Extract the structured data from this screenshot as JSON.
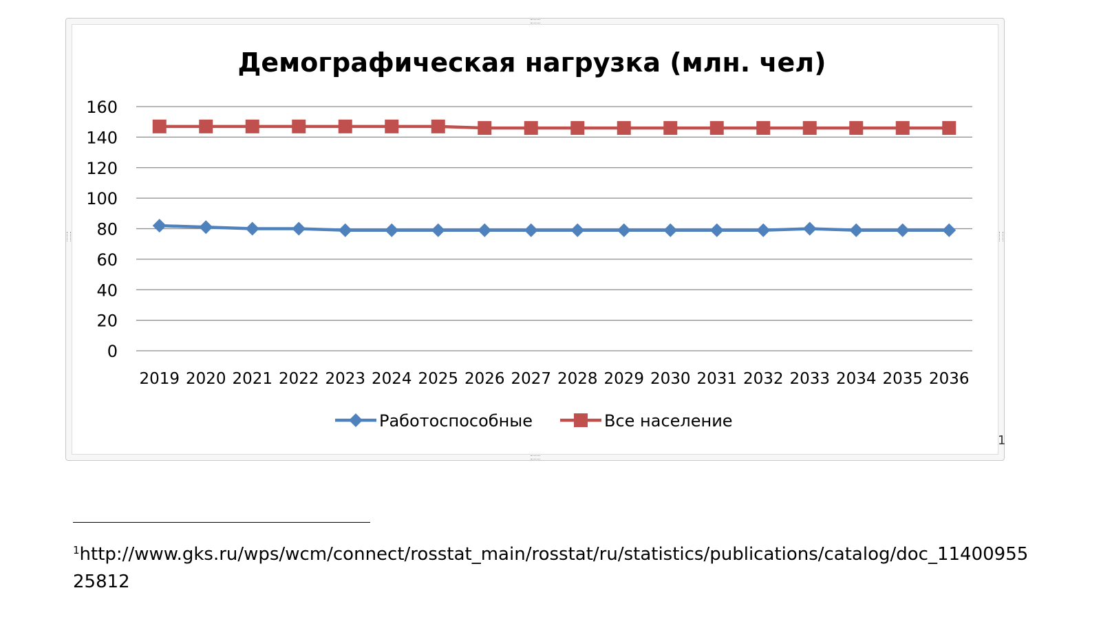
{
  "chart_data": {
    "type": "line",
    "title": "Демографическая нагрузка (млн. чел)",
    "xlabel": "",
    "ylabel": "",
    "categories": [
      "2019",
      "2020",
      "2021",
      "2022",
      "2023",
      "2024",
      "2025",
      "2026",
      "2027",
      "2028",
      "2029",
      "2030",
      "2031",
      "2032",
      "2033",
      "2034",
      "2035",
      "2036"
    ],
    "ylim": [
      0,
      160
    ],
    "yticks": [
      "0",
      "20",
      "40",
      "60",
      "80",
      "100",
      "120",
      "140",
      "160"
    ],
    "grid": true,
    "legend": "bottom",
    "series": [
      {
        "name": "Работоспособные",
        "color": "#4f81bd",
        "marker": "diamond",
        "values": [
          82,
          81,
          80,
          80,
          79,
          79,
          79,
          79,
          79,
          79,
          79,
          79,
          79,
          79,
          80,
          79,
          79,
          79
        ]
      },
      {
        "name": "Все население",
        "color": "#c0504d",
        "marker": "square",
        "values": [
          147,
          147,
          147,
          147,
          147,
          147,
          147,
          146,
          146,
          146,
          146,
          146,
          146,
          146,
          146,
          146,
          146,
          146
        ]
      }
    ]
  },
  "footnote": {
    "marker": "1",
    "text": "http://www.gks.ru/wps/wcm/connect/rosstat_main/rosstat/ru/statistics/publications/catalog/doc_1140095525812"
  },
  "page_mark": "1"
}
